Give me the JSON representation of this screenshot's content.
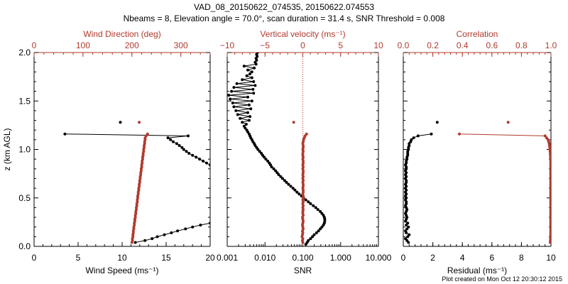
{
  "title_line1": "VAD_08_20150622_074535, 20150622.074553",
  "title_line2": "Nbeams = 8, Elevation angle = 70.0°, scan duration = 31.4 s, SNR Threshold = 0.008",
  "footer": "Plot created on Mon Oct 12 20:30:12 2015",
  "colors": {
    "black": "#000000",
    "red": "#b03a2e",
    "frame": "#000000"
  },
  "chart_data": [
    {
      "type": "scatter",
      "panel": "wind",
      "ylabel": "z (km AGL)",
      "ylim": [
        0,
        2
      ],
      "yticks": [
        "0.0",
        "0.5",
        "1.0",
        "1.5",
        "2.0"
      ],
      "bottom_axis": {
        "label": "Wind Speed (ms⁻¹)",
        "range": [
          0,
          20
        ],
        "ticks": [
          "0",
          "5",
          "10",
          "15",
          "20"
        ]
      },
      "top_axis": {
        "label": "Wind Direction (deg)",
        "range": [
          0,
          360
        ],
        "ticks": [
          "0",
          "100",
          "200",
          "300"
        ],
        "tick_values": [
          0,
          100,
          200,
          300
        ]
      },
      "series": [
        {
          "axis": "bottom",
          "color": "black",
          "z": [
            0.04,
            0.06,
            0.08,
            0.1,
            0.12,
            0.14,
            0.16,
            0.18,
            0.2,
            0.22,
            0.24,
            0.84,
            0.86,
            0.88,
            0.9,
            0.92,
            0.94,
            0.96,
            0.98,
            1.0,
            1.02,
            1.04,
            1.06,
            1.08,
            1.1,
            1.12,
            1.14,
            1.16,
            1.28
          ],
          "values": [
            11.5,
            12.6,
            13.4,
            14.0,
            14.8,
            15.6,
            16.3,
            17.2,
            18.0,
            18.9,
            20.0,
            20.0,
            19.6,
            19.2,
            18.8,
            18.4,
            18.0,
            17.6,
            17.3,
            17.0,
            16.8,
            16.5,
            16.2,
            15.8,
            15.5,
            15.2,
            17.5,
            3.5,
            9.8
          ]
        },
        {
          "axis": "top",
          "color": "red",
          "z": [
            0.04,
            0.06,
            0.08,
            0.1,
            0.12,
            0.14,
            0.16,
            0.18,
            0.2,
            0.22,
            0.24,
            0.26,
            0.28,
            0.3,
            0.32,
            0.34,
            0.36,
            0.38,
            0.4,
            0.42,
            0.44,
            0.46,
            0.48,
            0.5,
            0.52,
            0.54,
            0.56,
            0.58,
            0.6,
            0.62,
            0.64,
            0.66,
            0.68,
            0.7,
            0.72,
            0.74,
            0.76,
            0.78,
            0.8,
            0.82,
            0.84,
            0.86,
            0.88,
            0.9,
            0.92,
            0.94,
            0.96,
            0.98,
            1.0,
            1.02,
            1.04,
            1.06,
            1.08,
            1.1,
            1.12,
            1.14,
            1.16,
            1.28
          ],
          "values": [
            200,
            201,
            201,
            202,
            202,
            203,
            203,
            204,
            204,
            205,
            205,
            206,
            206,
            207,
            207,
            208,
            208,
            209,
            209,
            210,
            210,
            211,
            211,
            212,
            212,
            213,
            213,
            214,
            214,
            215,
            215,
            216,
            216,
            217,
            217,
            218,
            218,
            219,
            219,
            220,
            220,
            221,
            221,
            222,
            222,
            223,
            223,
            224,
            224,
            225,
            225,
            226,
            226,
            227,
            227,
            229,
            232,
            215
          ]
        }
      ]
    },
    {
      "type": "scatter",
      "panel": "vertical",
      "ylim": [
        0,
        2
      ],
      "bottom_axis": {
        "label": "SNR",
        "scale": "log",
        "range": [
          0.001,
          10
        ],
        "ticks": [
          "0.001",
          "0.010",
          "0.100",
          "1.000",
          "10.000"
        ],
        "tick_values": [
          0.001,
          0.01,
          0.1,
          1,
          10
        ]
      },
      "top_axis": {
        "label": "Vertical velocity (ms⁻¹)",
        "range": [
          -10,
          10
        ],
        "ticks": [
          "−10",
          "−5",
          "0",
          "5",
          "10"
        ],
        "tick_values": [
          -10,
          -5,
          0,
          5,
          10
        ]
      },
      "zero_line": 0,
      "series": [
        {
          "axis": "bottom",
          "color": "black",
          "z": [
            0.02,
            0.04,
            0.06,
            0.08,
            0.1,
            0.12,
            0.14,
            0.16,
            0.18,
            0.2,
            0.22,
            0.24,
            0.26,
            0.28,
            0.3,
            0.32,
            0.34,
            0.36,
            0.38,
            0.4,
            0.42,
            0.44,
            0.46,
            0.48,
            0.5,
            0.52,
            0.54,
            0.56,
            0.58,
            0.6,
            0.62,
            0.64,
            0.66,
            0.68,
            0.7,
            0.72,
            0.74,
            0.76,
            0.78,
            0.8,
            0.82,
            0.84,
            0.86,
            0.88,
            0.9,
            0.92,
            0.94,
            0.96,
            0.98,
            1.0,
            1.02,
            1.04,
            1.06,
            1.08,
            1.1,
            1.12,
            1.14,
            1.16,
            1.18,
            1.2,
            1.22,
            1.24,
            1.26,
            1.28,
            1.3,
            1.32,
            1.34,
            1.36,
            1.38,
            1.4,
            1.42,
            1.44,
            1.46,
            1.48,
            1.5,
            1.52,
            1.54,
            1.56,
            1.58,
            1.6,
            1.62,
            1.64,
            1.66,
            1.68,
            1.7,
            1.72,
            1.74,
            1.76,
            1.78,
            1.8,
            1.82,
            1.84,
            1.86,
            1.88,
            1.9,
            1.92,
            1.94,
            1.96,
            1.98,
            2.0
          ],
          "values": [
            0.12,
            0.13,
            0.14,
            0.16,
            0.18,
            0.2,
            0.23,
            0.26,
            0.29,
            0.32,
            0.35,
            0.37,
            0.38,
            0.38,
            0.37,
            0.35,
            0.32,
            0.29,
            0.25,
            0.22,
            0.19,
            0.16,
            0.14,
            0.12,
            0.105,
            0.092,
            0.08,
            0.07,
            0.062,
            0.055,
            0.048,
            0.042,
            0.037,
            0.033,
            0.029,
            0.026,
            0.023,
            0.021,
            0.019,
            0.017,
            0.015,
            0.014,
            0.013,
            0.0118,
            0.0105,
            0.0095,
            0.0087,
            0.008,
            0.0072,
            0.0065,
            0.006,
            0.0055,
            0.0052,
            0.0048,
            0.0045,
            0.0042,
            0.004,
            0.0038,
            0.0035,
            0.0033,
            0.003,
            0.0028,
            0.0032,
            0.0025,
            0.0038,
            0.0022,
            0.004,
            0.0019,
            0.0035,
            0.0017,
            0.0042,
            0.0015,
            0.0038,
            0.0014,
            0.0045,
            0.0012,
            0.0035,
            0.0011,
            0.005,
            0.0013,
            0.0048,
            0.0015,
            0.0055,
            0.0018,
            0.005,
            0.0025,
            0.0045,
            0.0033,
            0.004,
            0.0045,
            0.0035,
            0.0052,
            0.0028,
            0.0058,
            0.0055,
            0.006,
            0.0058,
            0.0062,
            0.006,
            0.0063
          ]
        },
        {
          "axis": "top",
          "color": "red",
          "z": [
            0.04,
            0.06,
            0.08,
            0.1,
            0.12,
            0.14,
            0.16,
            0.18,
            0.2,
            0.22,
            0.24,
            0.26,
            0.28,
            0.3,
            0.32,
            0.34,
            0.36,
            0.38,
            0.4,
            0.42,
            0.44,
            0.46,
            0.48,
            0.5,
            0.52,
            0.54,
            0.56,
            0.58,
            0.6,
            0.62,
            0.64,
            0.66,
            0.68,
            0.7,
            0.72,
            0.74,
            0.76,
            0.78,
            0.8,
            0.82,
            0.84,
            0.86,
            0.88,
            0.9,
            0.92,
            0.94,
            0.96,
            0.98,
            1.0,
            1.02,
            1.04,
            1.06,
            1.08,
            1.1,
            1.12,
            1.14,
            1.16,
            1.28
          ],
          "values": [
            0.0,
            -0.05,
            0.0,
            -0.1,
            -0.05,
            0.0,
            -0.05,
            0.05,
            0.0,
            -0.05,
            0.0,
            0.05,
            0.0,
            -0.05,
            0.05,
            0.0,
            0.0,
            0.05,
            0.0,
            0.05,
            0.0,
            0.05,
            0.0,
            0.05,
            0.05,
            0.0,
            0.05,
            0.05,
            0.0,
            0.05,
            0.05,
            0.0,
            0.05,
            0.0,
            0.05,
            0.0,
            0.05,
            0.05,
            0.0,
            0.05,
            0.0,
            0.05,
            0.05,
            0.0,
            0.05,
            0.0,
            0.0,
            0.05,
            0.0,
            0.05,
            0.05,
            0.0,
            0.05,
            0.1,
            0.2,
            0.3,
            0.5,
            -1.2
          ]
        }
      ]
    },
    {
      "type": "scatter",
      "panel": "residual",
      "ylim": [
        0,
        2
      ],
      "bottom_axis": {
        "label": "Residual (ms⁻¹)",
        "range": [
          0,
          10
        ],
        "ticks": [
          "0",
          "2",
          "4",
          "6",
          "8",
          "10"
        ],
        "tick_values": [
          0,
          2,
          4,
          6,
          8,
          10
        ]
      },
      "top_axis": {
        "label": "Correlation",
        "range": [
          0,
          1
        ],
        "ticks": [
          "0.0",
          "0.2",
          "0.4",
          "0.6",
          "0.8",
          "1.0"
        ],
        "tick_values": [
          0,
          0.2,
          0.4,
          0.6,
          0.8,
          1.0
        ]
      },
      "series": [
        {
          "axis": "bottom",
          "color": "black",
          "z": [
            0.04,
            0.06,
            0.08,
            0.1,
            0.12,
            0.14,
            0.16,
            0.18,
            0.2,
            0.22,
            0.24,
            0.26,
            0.28,
            0.3,
            0.32,
            0.34,
            0.36,
            0.38,
            0.4,
            0.42,
            0.44,
            0.46,
            0.48,
            0.5,
            0.52,
            0.54,
            0.56,
            0.58,
            0.6,
            0.62,
            0.64,
            0.66,
            0.68,
            0.7,
            0.72,
            0.74,
            0.76,
            0.78,
            0.8,
            0.82,
            0.84,
            0.86,
            0.88,
            0.9,
            0.92,
            0.94,
            0.96,
            0.98,
            1.0,
            1.02,
            1.04,
            1.06,
            1.08,
            1.1,
            1.12,
            1.14,
            1.16,
            1.28
          ],
          "values": [
            0.35,
            0.25,
            0.15,
            0.3,
            0.4,
            0.2,
            0.15,
            0.25,
            0.35,
            0.2,
            0.3,
            0.15,
            0.2,
            0.25,
            0.2,
            0.15,
            0.2,
            0.25,
            0.2,
            0.15,
            0.2,
            0.2,
            0.15,
            0.2,
            0.15,
            0.2,
            0.15,
            0.2,
            0.15,
            0.2,
            0.15,
            0.2,
            0.2,
            0.15,
            0.2,
            0.15,
            0.2,
            0.15,
            0.2,
            0.2,
            0.15,
            0.2,
            0.2,
            0.25,
            0.25,
            0.3,
            0.3,
            0.3,
            0.35,
            0.35,
            0.4,
            0.4,
            0.5,
            0.55,
            0.7,
            1.0,
            1.9,
            2.3
          ]
        },
        {
          "axis": "top",
          "color": "red",
          "z": [
            0.04,
            0.06,
            0.08,
            0.1,
            0.12,
            0.14,
            0.16,
            0.18,
            0.2,
            0.22,
            0.24,
            0.26,
            0.28,
            0.3,
            0.32,
            0.34,
            0.36,
            0.38,
            0.4,
            0.42,
            0.44,
            0.46,
            0.48,
            0.5,
            0.52,
            0.54,
            0.56,
            0.58,
            0.6,
            0.62,
            0.64,
            0.66,
            0.68,
            0.7,
            0.72,
            0.74,
            0.76,
            0.78,
            0.8,
            0.82,
            0.84,
            0.86,
            0.88,
            0.9,
            0.92,
            0.94,
            0.96,
            0.98,
            1.0,
            1.02,
            1.04,
            1.06,
            1.08,
            1.1,
            1.12,
            1.14,
            1.16,
            1.28
          ],
          "values": [
            0.995,
            0.996,
            0.997,
            0.997,
            0.998,
            0.998,
            0.998,
            0.998,
            0.998,
            0.998,
            0.998,
            0.998,
            0.998,
            0.998,
            0.998,
            0.998,
            0.998,
            0.998,
            0.998,
            0.998,
            0.998,
            0.998,
            0.998,
            0.998,
            0.998,
            0.998,
            0.998,
            0.998,
            0.998,
            0.998,
            0.998,
            0.998,
            0.998,
            0.998,
            0.998,
            0.998,
            0.998,
            0.998,
            0.998,
            0.998,
            0.998,
            0.998,
            0.998,
            0.997,
            0.997,
            0.996,
            0.995,
            0.994,
            0.993,
            0.992,
            0.99,
            0.988,
            0.985,
            0.98,
            0.97,
            0.96,
            0.38,
            0.71
          ]
        }
      ]
    }
  ]
}
